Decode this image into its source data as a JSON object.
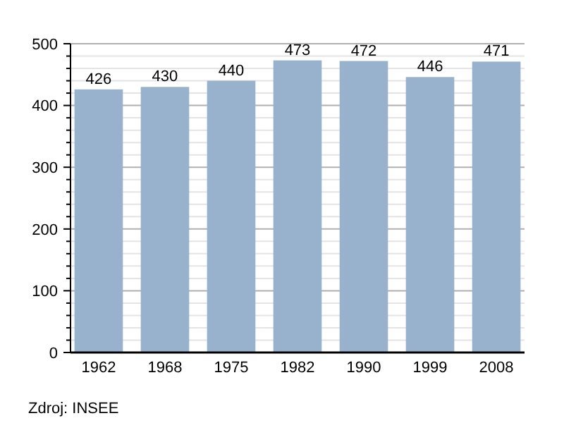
{
  "chart_data": {
    "type": "bar",
    "categories": [
      "1962",
      "1968",
      "1975",
      "1982",
      "1990",
      "1999",
      "2008"
    ],
    "values": [
      426,
      430,
      440,
      473,
      472,
      446,
      471
    ],
    "color": "#98b1cc",
    "data_labels": true,
    "grid": "y",
    "ylim": [
      0,
      500
    ],
    "yticks": [
      0,
      {
        "value": 20,
        "label": null
      },
      {
        "value": 40,
        "label": null
      },
      {
        "value": 60,
        "label": null
      },
      {
        "value": 80,
        "label": null
      },
      100,
      {
        "value": 120,
        "label": null
      },
      {
        "value": 140,
        "label": null
      },
      {
        "value": 160,
        "label": null
      },
      {
        "value": 180,
        "label": null
      },
      200,
      {
        "value": 220,
        "label": null
      },
      {
        "value": 240,
        "label": null
      },
      {
        "value": 260,
        "label": null
      },
      {
        "value": 280,
        "label": null
      },
      300,
      {
        "value": 320,
        "label": null
      },
      {
        "value": 340,
        "label": null
      },
      {
        "value": 360,
        "label": null
      },
      {
        "value": 380,
        "label": null
      },
      400,
      {
        "value": 420,
        "label": null
      },
      {
        "value": 440,
        "label": null
      },
      {
        "value": 460,
        "label": null
      },
      {
        "value": 480,
        "label": null
      },
      500
    ],
    "annotations": [
      "Zdroj: INSEE"
    ]
  }
}
